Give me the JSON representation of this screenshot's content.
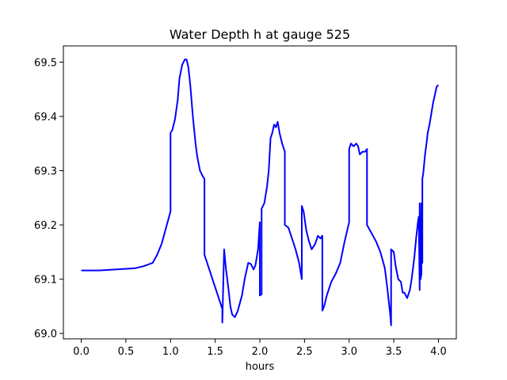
{
  "chart_data": {
    "type": "line",
    "title": "Water Depth h at gauge 525",
    "xlabel": "hours",
    "ylabel": "",
    "xlim": [
      -0.2,
      4.2
    ],
    "ylim": [
      68.99,
      69.53
    ],
    "grid": false,
    "color": "#0000ff",
    "xticks": [
      0.0,
      0.5,
      1.0,
      1.5,
      2.0,
      2.5,
      3.0,
      3.5,
      4.0
    ],
    "xtick_labels": [
      "0.0",
      "0.5",
      "1.0",
      "1.5",
      "2.0",
      "2.5",
      "3.0",
      "3.5",
      "4.0"
    ],
    "yticks": [
      69.0,
      69.1,
      69.2,
      69.3,
      69.4,
      69.5
    ],
    "ytick_labels": [
      "69.0",
      "69.1",
      "69.2",
      "69.3",
      "69.4",
      "69.5"
    ],
    "series": [
      {
        "x": [
          0.0,
          0.2,
          0.4,
          0.6,
          0.7,
          0.8,
          0.85,
          0.9,
          0.95,
          1.0,
          1.0,
          1.02,
          1.05,
          1.08,
          1.1,
          1.13,
          1.16,
          1.18,
          1.2,
          1.22,
          1.25,
          1.28,
          1.3,
          1.33,
          1.36,
          1.38,
          1.38,
          1.41,
          1.45,
          1.5,
          1.55,
          1.58,
          1.58,
          1.6,
          1.62,
          1.65,
          1.67,
          1.69,
          1.72,
          1.75,
          1.8,
          1.83,
          1.87,
          1.9,
          1.93,
          1.95,
          1.98,
          2.0,
          2.0,
          2.02,
          2.02,
          2.05,
          2.08,
          2.1,
          2.12,
          2.14,
          2.16,
          2.18,
          2.2,
          2.22,
          2.25,
          2.28,
          2.28,
          2.32,
          2.36,
          2.4,
          2.44,
          2.47,
          2.47,
          2.49,
          2.52,
          2.55,
          2.58,
          2.6,
          2.62,
          2.65,
          2.68,
          2.7,
          2.7,
          2.72,
          2.75,
          2.8,
          2.85,
          2.9,
          2.95,
          3.0,
          3.0,
          3.02,
          3.05,
          3.08,
          3.1,
          3.12,
          3.15,
          3.18,
          3.2,
          3.2,
          3.25,
          3.3,
          3.35,
          3.4,
          3.43,
          3.46,
          3.47,
          3.47,
          3.5,
          3.52,
          3.55,
          3.58,
          3.6,
          3.62,
          3.65,
          3.68,
          3.7,
          3.73,
          3.75,
          3.77,
          3.78,
          3.79,
          3.79,
          3.8,
          3.81,
          3.81,
          3.82,
          3.82,
          3.83,
          3.85,
          3.87,
          3.88,
          3.9,
          3.92,
          3.94,
          3.96,
          3.98,
          4.0
        ],
        "y": [
          69.116,
          69.116,
          69.118,
          69.12,
          69.124,
          69.13,
          69.145,
          69.165,
          69.195,
          69.225,
          69.37,
          69.375,
          69.395,
          69.43,
          69.47,
          69.495,
          69.505,
          69.505,
          69.49,
          69.46,
          69.4,
          69.35,
          69.325,
          69.3,
          69.29,
          69.285,
          69.145,
          69.13,
          69.11,
          69.085,
          69.06,
          69.045,
          69.02,
          69.155,
          69.12,
          69.08,
          69.05,
          69.035,
          69.03,
          69.04,
          69.07,
          69.1,
          69.13,
          69.128,
          69.118,
          69.125,
          69.155,
          69.205,
          69.07,
          69.072,
          69.23,
          69.24,
          69.27,
          69.3,
          69.36,
          69.37,
          69.385,
          69.38,
          69.39,
          69.37,
          69.35,
          69.335,
          69.2,
          69.195,
          69.175,
          69.155,
          69.13,
          69.1,
          69.235,
          69.225,
          69.19,
          69.17,
          69.155,
          69.16,
          69.165,
          69.18,
          69.175,
          69.18,
          69.042,
          69.05,
          69.07,
          69.095,
          69.11,
          69.13,
          69.17,
          69.205,
          69.34,
          69.35,
          69.345,
          69.35,
          69.345,
          69.33,
          69.335,
          69.335,
          69.34,
          69.2,
          69.185,
          69.17,
          69.15,
          69.12,
          69.08,
          69.035,
          69.015,
          69.155,
          69.15,
          69.125,
          69.1,
          69.095,
          69.075,
          69.075,
          69.065,
          69.08,
          69.1,
          69.14,
          69.175,
          69.205,
          69.215,
          69.08,
          69.24,
          69.1,
          69.11,
          69.24,
          69.13,
          69.285,
          69.295,
          69.33,
          69.355,
          69.37,
          69.385,
          69.405,
          69.425,
          69.44,
          69.455,
          69.458
        ]
      }
    ]
  }
}
